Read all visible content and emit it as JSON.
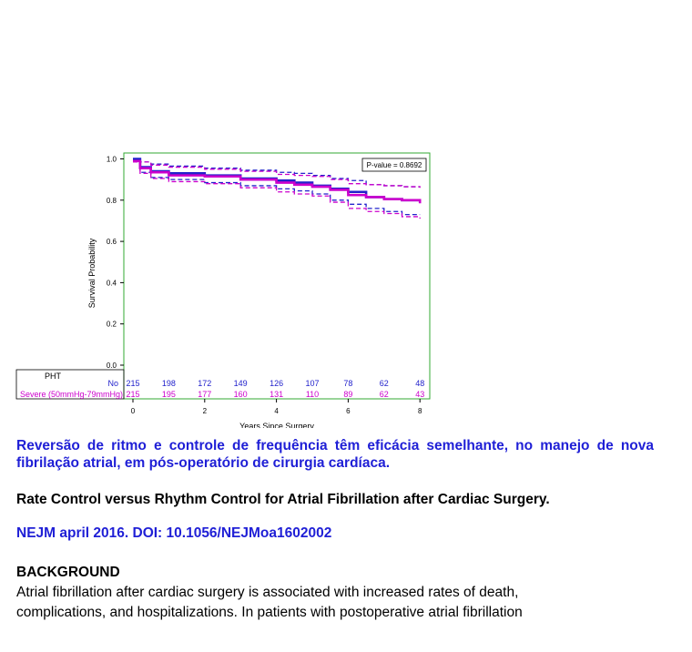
{
  "chart_data": {
    "type": "line",
    "xlabel": "Years Since Surgery",
    "ylabel": "Survival Probability",
    "xlim": [
      -0.5,
      8.3
    ],
    "ylim": [
      -0.03,
      1.03
    ],
    "x_ticks": [
      0,
      2,
      4,
      6,
      8
    ],
    "y_ticks": [
      "0.0",
      "0.2",
      "0.4",
      "0.6",
      "0.8",
      "1.0"
    ],
    "annotation": "P-value = 0.8692",
    "colors": {
      "no": "#2222cc",
      "severe": "#cc00cc",
      "frame": "#33aa33"
    },
    "series": [
      {
        "key": "no",
        "x": [
          0,
          0.2,
          0.5,
          1,
          2,
          3,
          4,
          4.5,
          5,
          5.5,
          6,
          6.5,
          7,
          7.5,
          8
        ],
        "values": [
          1.0,
          0.96,
          0.94,
          0.93,
          0.92,
          0.905,
          0.895,
          0.885,
          0.87,
          0.855,
          0.84,
          0.815,
          0.805,
          0.8,
          0.8
        ],
        "ci_upper": [
          1.0,
          0.985,
          0.975,
          0.965,
          0.955,
          0.945,
          0.935,
          0.93,
          0.92,
          0.905,
          0.895,
          0.875,
          0.87,
          0.865,
          0.865
        ],
        "ci_lower": [
          1.0,
          0.935,
          0.91,
          0.9,
          0.885,
          0.87,
          0.855,
          0.845,
          0.83,
          0.8,
          0.78,
          0.76,
          0.745,
          0.73,
          0.73
        ]
      },
      {
        "key": "severe",
        "x": [
          0,
          0.2,
          0.5,
          1,
          2,
          3,
          4,
          4.5,
          5,
          5.5,
          6,
          6.5,
          7,
          7.5,
          8
        ],
        "values": [
          0.99,
          0.955,
          0.935,
          0.92,
          0.915,
          0.9,
          0.885,
          0.875,
          0.865,
          0.85,
          0.825,
          0.815,
          0.805,
          0.8,
          0.785
        ],
        "ci_upper": [
          1.0,
          0.985,
          0.97,
          0.96,
          0.95,
          0.94,
          0.925,
          0.92,
          0.915,
          0.9,
          0.88,
          0.875,
          0.87,
          0.865,
          0.86
        ],
        "ci_lower": [
          0.985,
          0.93,
          0.905,
          0.89,
          0.88,
          0.86,
          0.84,
          0.83,
          0.82,
          0.79,
          0.76,
          0.745,
          0.735,
          0.72,
          0.71
        ]
      }
    ],
    "risk_table": {
      "header": "PHT",
      "times": [
        0,
        1,
        2,
        3,
        4,
        5,
        6,
        7,
        8
      ],
      "rows": [
        {
          "key": "no",
          "label": "No",
          "values": [
            215,
            198,
            172,
            149,
            126,
            107,
            78,
            62,
            48
          ]
        },
        {
          "key": "severe",
          "label": "Severe (50mmHg-79mmHg)",
          "values": [
            215,
            195,
            177,
            160,
            131,
            110,
            89,
            62,
            43
          ]
        }
      ]
    }
  },
  "text": {
    "headline": "Reversão de ritmo e controle de frequência têm eficácia semelhante, no manejo de nova fibrilação atrial, em pós-operatório de cirurgia cardíaca.",
    "title_en": "Rate Control versus Rhythm Control for Atrial Fibrillation after Cardiac Surgery.",
    "citation": "NEJM april 2016. DOI: 10.1056/NEJMoa1602002",
    "section_heading": "BACKGROUND",
    "body": "Atrial fibrillation after cardiac surgery is associated with increased rates of death, complications, and hospitalizations. In patients with postoperative atrial fibrillation"
  }
}
